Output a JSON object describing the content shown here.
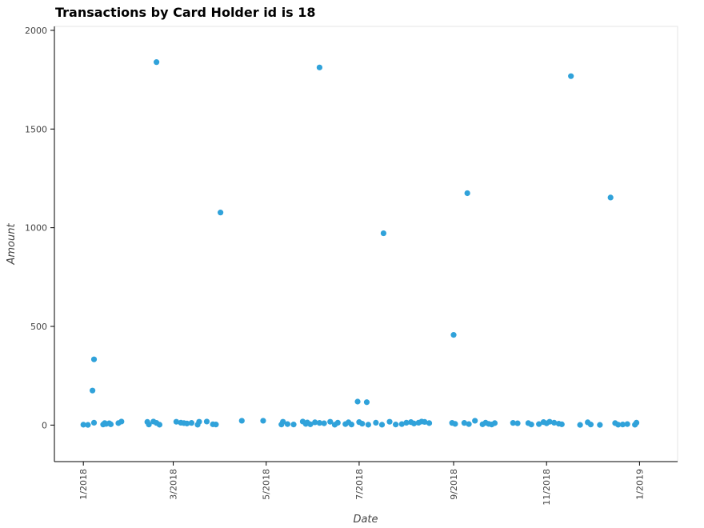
{
  "chart_data": {
    "type": "scatter",
    "title": "Transactions by Card Holder id is 18",
    "xlabel": "Date",
    "ylabel": "Amount",
    "x_axis_type": "date",
    "xlim": [
      "2017-12-13",
      "2019-01-26"
    ],
    "ylim": [
      -185,
      2020
    ],
    "xticks": [
      {
        "date": "2018-01-01",
        "label": "1/2018"
      },
      {
        "date": "2018-03-01",
        "label": "3/2018"
      },
      {
        "date": "2018-05-01",
        "label": "5/2018"
      },
      {
        "date": "2018-07-01",
        "label": "7/2018"
      },
      {
        "date": "2018-09-01",
        "label": "9/2018"
      },
      {
        "date": "2018-11-01",
        "label": "11/2018"
      },
      {
        "date": "2019-01-01",
        "label": "1/2019"
      }
    ],
    "yticks": [
      0,
      500,
      1000,
      1500,
      2000
    ],
    "grid": false,
    "marker_color": "#30a2da",
    "points": [
      {
        "x": "2018-01-01",
        "y": 2
      },
      {
        "x": "2018-01-04",
        "y": 1
      },
      {
        "x": "2018-01-07",
        "y": 175
      },
      {
        "x": "2018-01-08",
        "y": 333
      },
      {
        "x": "2018-01-08",
        "y": 12
      },
      {
        "x": "2018-01-14",
        "y": 3
      },
      {
        "x": "2018-01-15",
        "y": 10
      },
      {
        "x": "2018-01-16",
        "y": 6
      },
      {
        "x": "2018-01-18",
        "y": 9
      },
      {
        "x": "2018-01-19",
        "y": 4
      },
      {
        "x": "2018-01-24",
        "y": 10
      },
      {
        "x": "2018-01-26",
        "y": 18
      },
      {
        "x": "2018-02-12",
        "y": 16
      },
      {
        "x": "2018-02-13",
        "y": 3
      },
      {
        "x": "2018-02-16",
        "y": 18
      },
      {
        "x": "2018-02-18",
        "y": 1839
      },
      {
        "x": "2018-02-18",
        "y": 11
      },
      {
        "x": "2018-02-20",
        "y": 2
      },
      {
        "x": "2018-03-03",
        "y": 17
      },
      {
        "x": "2018-03-06",
        "y": 12
      },
      {
        "x": "2018-03-08",
        "y": 10
      },
      {
        "x": "2018-03-10",
        "y": 8
      },
      {
        "x": "2018-03-13",
        "y": 11
      },
      {
        "x": "2018-03-17",
        "y": 2
      },
      {
        "x": "2018-03-18",
        "y": 17
      },
      {
        "x": "2018-03-23",
        "y": 18
      },
      {
        "x": "2018-03-27",
        "y": 4
      },
      {
        "x": "2018-03-29",
        "y": 3
      },
      {
        "x": "2018-04-01",
        "y": 1077
      },
      {
        "x": "2018-04-15",
        "y": 22
      },
      {
        "x": "2018-04-29",
        "y": 22
      },
      {
        "x": "2018-05-11",
        "y": 3
      },
      {
        "x": "2018-05-12",
        "y": 17
      },
      {
        "x": "2018-05-15",
        "y": 5
      },
      {
        "x": "2018-05-19",
        "y": 3
      },
      {
        "x": "2018-05-25",
        "y": 18
      },
      {
        "x": "2018-05-27",
        "y": 6
      },
      {
        "x": "2018-05-28",
        "y": 13
      },
      {
        "x": "2018-05-30",
        "y": 4
      },
      {
        "x": "2018-06-02",
        "y": 14
      },
      {
        "x": "2018-06-05",
        "y": 11
      },
      {
        "x": "2018-06-05",
        "y": 1812
      },
      {
        "x": "2018-06-08",
        "y": 9
      },
      {
        "x": "2018-06-12",
        "y": 17
      },
      {
        "x": "2018-06-15",
        "y": 2
      },
      {
        "x": "2018-06-17",
        "y": 12
      },
      {
        "x": "2018-06-22",
        "y": 5
      },
      {
        "x": "2018-06-24",
        "y": 14
      },
      {
        "x": "2018-06-26",
        "y": 3
      },
      {
        "x": "2018-06-30",
        "y": 119
      },
      {
        "x": "2018-07-01",
        "y": 15
      },
      {
        "x": "2018-07-03",
        "y": 7
      },
      {
        "x": "2018-07-06",
        "y": 116
      },
      {
        "x": "2018-07-07",
        "y": 2
      },
      {
        "x": "2018-07-12",
        "y": 12
      },
      {
        "x": "2018-07-16",
        "y": 2
      },
      {
        "x": "2018-07-17",
        "y": 972
      },
      {
        "x": "2018-07-21",
        "y": 17
      },
      {
        "x": "2018-07-25",
        "y": 3
      },
      {
        "x": "2018-07-29",
        "y": 5
      },
      {
        "x": "2018-08-01",
        "y": 12
      },
      {
        "x": "2018-08-04",
        "y": 15
      },
      {
        "x": "2018-08-06",
        "y": 8
      },
      {
        "x": "2018-08-09",
        "y": 12
      },
      {
        "x": "2018-08-11",
        "y": 18
      },
      {
        "x": "2018-08-13",
        "y": 16
      },
      {
        "x": "2018-08-16",
        "y": 10
      },
      {
        "x": "2018-08-31",
        "y": 11
      },
      {
        "x": "2018-09-01",
        "y": 457
      },
      {
        "x": "2018-09-02",
        "y": 6
      },
      {
        "x": "2018-09-08",
        "y": 11
      },
      {
        "x": "2018-09-10",
        "y": 1175
      },
      {
        "x": "2018-09-11",
        "y": 5
      },
      {
        "x": "2018-09-15",
        "y": 22
      },
      {
        "x": "2018-09-20",
        "y": 4
      },
      {
        "x": "2018-09-22",
        "y": 12
      },
      {
        "x": "2018-09-24",
        "y": 6
      },
      {
        "x": "2018-09-26",
        "y": 3
      },
      {
        "x": "2018-09-28",
        "y": 10
      },
      {
        "x": "2018-10-10",
        "y": 11
      },
      {
        "x": "2018-10-13",
        "y": 9
      },
      {
        "x": "2018-10-20",
        "y": 10
      },
      {
        "x": "2018-10-22",
        "y": 3
      },
      {
        "x": "2018-10-27",
        "y": 5
      },
      {
        "x": "2018-10-30",
        "y": 15
      },
      {
        "x": "2018-11-01",
        "y": 9
      },
      {
        "x": "2018-11-03",
        "y": 17
      },
      {
        "x": "2018-11-06",
        "y": 12
      },
      {
        "x": "2018-11-09",
        "y": 7
      },
      {
        "x": "2018-11-11",
        "y": 4
      },
      {
        "x": "2018-11-17",
        "y": 1768
      },
      {
        "x": "2018-11-23",
        "y": 1
      },
      {
        "x": "2018-11-28",
        "y": 14
      },
      {
        "x": "2018-11-30",
        "y": 3
      },
      {
        "x": "2018-12-06",
        "y": 1
      },
      {
        "x": "2018-12-13",
        "y": 1153
      },
      {
        "x": "2018-12-16",
        "y": 10
      },
      {
        "x": "2018-12-18",
        "y": 2
      },
      {
        "x": "2018-12-21",
        "y": 3
      },
      {
        "x": "2018-12-24",
        "y": 5
      },
      {
        "x": "2018-12-29",
        "y": 2
      },
      {
        "x": "2018-12-30",
        "y": 12
      }
    ]
  }
}
